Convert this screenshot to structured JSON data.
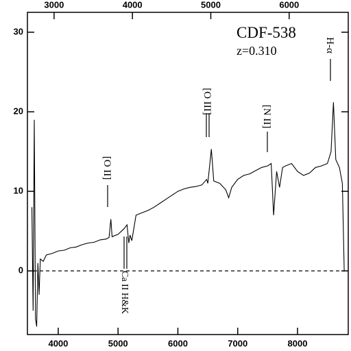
{
  "chart_data": {
    "type": "line",
    "title": "CDF-538",
    "subtitle": "z=0.310",
    "annotations": [
      "[O II]",
      "Ca II H&K",
      "[O III]",
      "[N II]",
      "H-α"
    ],
    "x": [
      3560,
      3580,
      3600,
      3620,
      3640,
      3660,
      3680,
      3700,
      3750,
      3800,
      3900,
      4000,
      4100,
      4200,
      4300,
      4400,
      4500,
      4600,
      4700,
      4800,
      4850,
      4880,
      4900,
      5000,
      5100,
      5150,
      5180,
      5200,
      5230,
      5300,
      5400,
      5500,
      5600,
      5700,
      5800,
      5900,
      6000,
      6100,
      6200,
      6300,
      6400,
      6480,
      6500,
      6560,
      6600,
      6700,
      6800,
      6850,
      6900,
      7000,
      7100,
      7200,
      7300,
      7400,
      7500,
      7560,
      7600,
      7650,
      7700,
      7750,
      7800,
      7900,
      8000,
      8100,
      8200,
      8300,
      8400,
      8500,
      8560,
      8600,
      8640,
      8700,
      8750,
      8780
    ],
    "values": [
      8,
      -5,
      19,
      -6,
      -7,
      1,
      -3,
      1.5,
      1.2,
      2,
      2.2,
      2.5,
      2.6,
      2.9,
      3,
      3.3,
      3.5,
      3.6,
      3.9,
      4.0,
      4.2,
      6.5,
      4.3,
      4.6,
      5.3,
      5.8,
      3.5,
      4.5,
      3.8,
      7.0,
      7.3,
      7.6,
      8.0,
      8.5,
      9.0,
      9.5,
      10.0,
      10.3,
      10.5,
      10.6,
      10.8,
      11.5,
      11.0,
      15.3,
      11.3,
      11.0,
      10.2,
      9.2,
      10.5,
      11.5,
      12.0,
      12.2,
      12.6,
      13.0,
      13.2,
      13.5,
      7.0,
      12.5,
      10.5,
      13.0,
      13.2,
      13.5,
      12.5,
      12.0,
      12.3,
      13.0,
      13.2,
      13.5,
      15.0,
      21.2,
      14.0,
      13.0,
      11.0,
      0
    ],
    "color": "#000000",
    "xlim": [
      3485,
      8848
    ],
    "xticks": [
      4000,
      5000,
      6000,
      7000,
      8000
    ],
    "x2lim": [
      2660,
      6754
    ],
    "x2ticks": [
      3000,
      4000,
      5000,
      6000
    ],
    "ylim": [
      -8,
      32.5
    ],
    "yticks": [
      0,
      10,
      20,
      30
    ],
    "zero_line": true
  }
}
